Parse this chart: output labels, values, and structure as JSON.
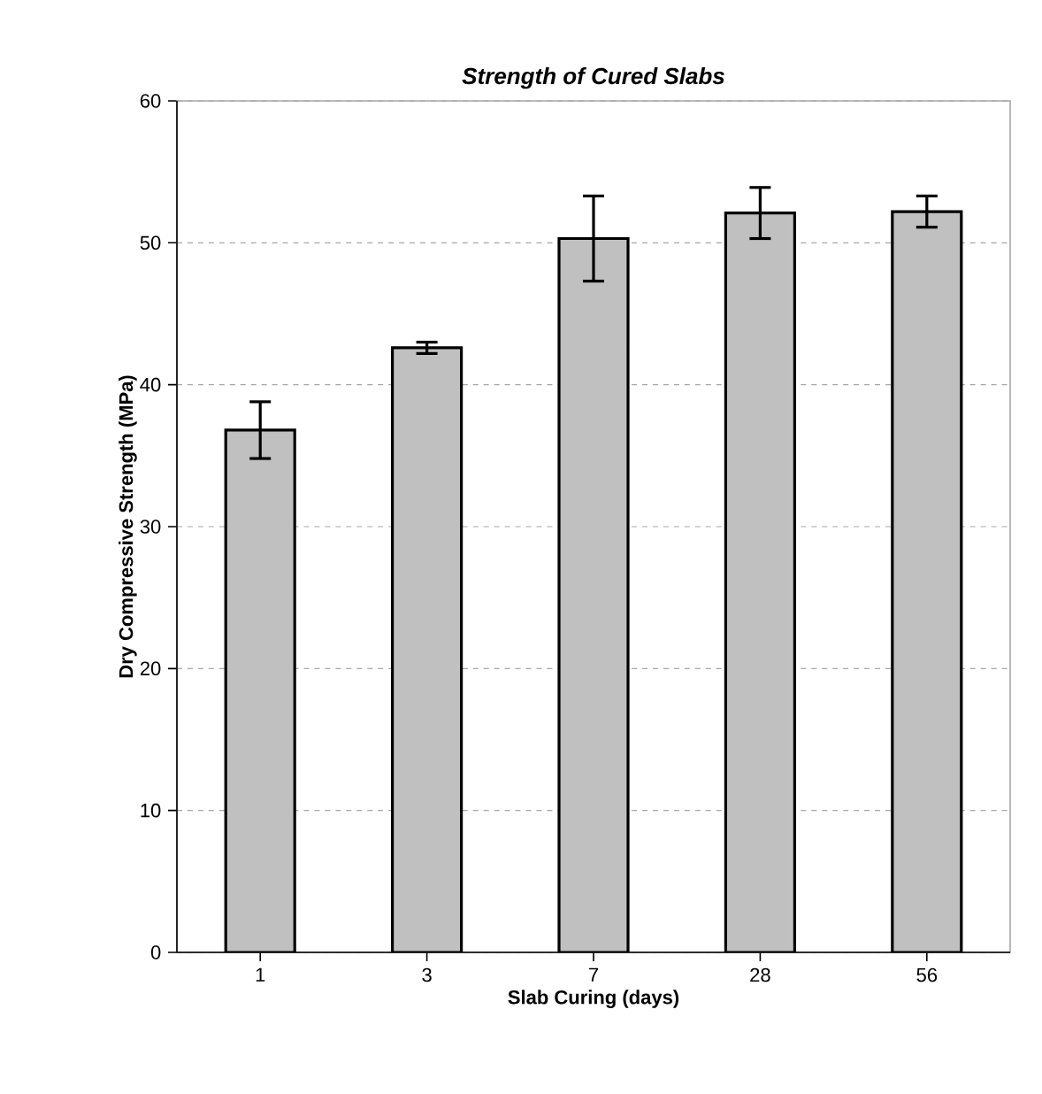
{
  "chart_data": {
    "type": "bar",
    "title": "Strength of Cured Slabs",
    "xlabel": "Slab Curing (days)",
    "ylabel": "Dry Compressive Strength (MPa)",
    "categories": [
      "1",
      "3",
      "7",
      "28",
      "56"
    ],
    "values": [
      36.8,
      42.6,
      50.3,
      52.1,
      52.2
    ],
    "errors": [
      2.0,
      0.4,
      3.0,
      1.8,
      1.1
    ],
    "color": "#c0c0c0",
    "ylim": [
      0,
      60
    ],
    "yticks": [
      0,
      10,
      20,
      30,
      40,
      50,
      60
    ],
    "grid": "y"
  }
}
